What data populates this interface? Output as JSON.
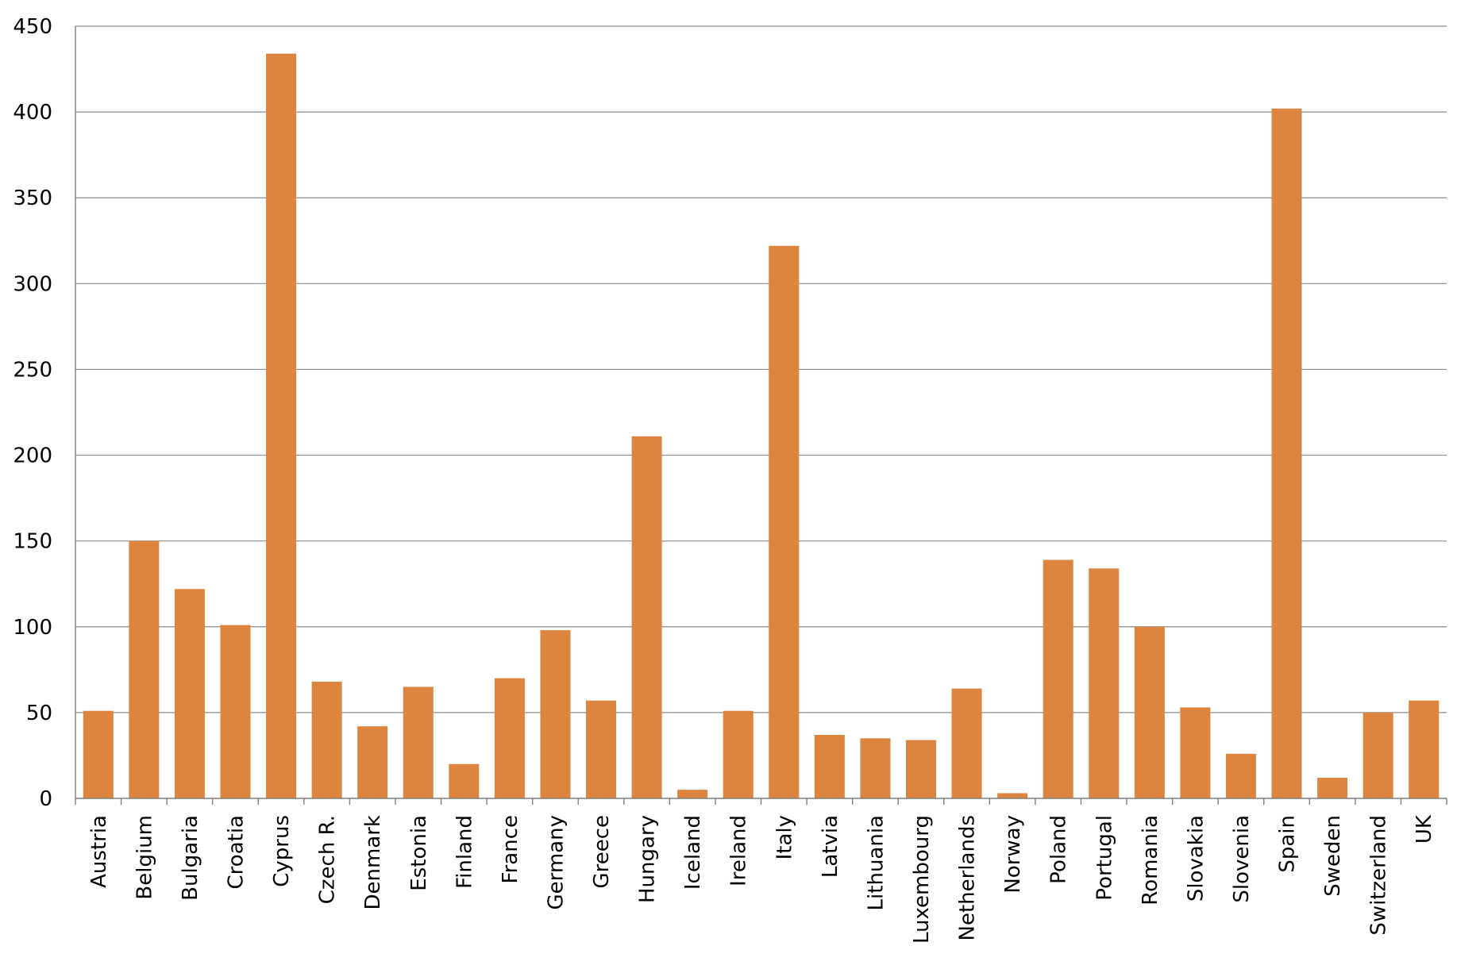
{
  "chart_data": {
    "type": "bar",
    "title": "",
    "xlabel": "",
    "ylabel": "",
    "ylim": [
      0,
      450
    ],
    "yticks": [
      0,
      50,
      100,
      150,
      200,
      250,
      300,
      350,
      400,
      450
    ],
    "yticks_text": [
      "0",
      "50",
      "100",
      "150",
      "200",
      "250",
      "300",
      "350",
      "400",
      "450"
    ],
    "grid": "horizontal",
    "legend": "none",
    "bar_color": "#dd843f",
    "categories": [
      "Austria",
      "Belgium",
      "Bulgaria",
      "Croatia",
      "Cyprus",
      "Czech R.",
      "Denmark",
      "Estonia",
      "Finland",
      "France",
      "Germany",
      "Greece",
      "Hungary",
      "Iceland",
      "Ireland",
      "Italy",
      "Latvia",
      "Lithuania",
      "Luxembourg",
      "Netherlands",
      "Norway",
      "Poland",
      "Portugal",
      "Romania",
      "Slovakia",
      "Slovenia",
      "Spain",
      "Sweden",
      "Switzerland",
      "UK"
    ],
    "values": [
      51,
      150,
      122,
      101,
      434,
      68,
      42,
      65,
      20,
      70,
      98,
      57,
      211,
      5,
      51,
      322,
      37,
      35,
      34,
      64,
      3,
      139,
      134,
      100,
      53,
      26,
      402,
      12,
      50,
      57
    ]
  }
}
